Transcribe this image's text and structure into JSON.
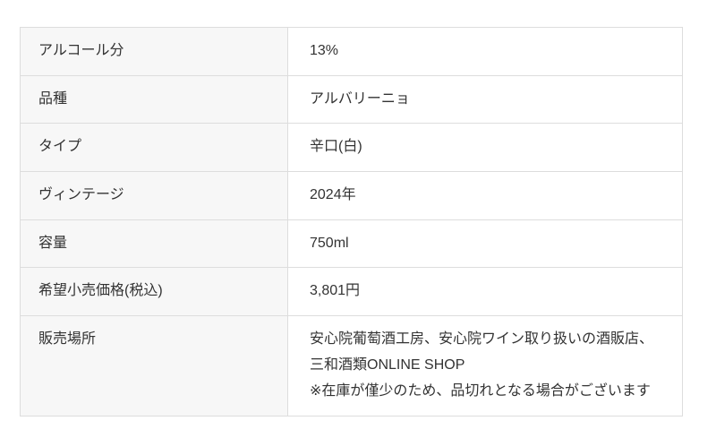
{
  "colors": {
    "label_bg": "#f7f7f7",
    "border": "#dddddd",
    "text": "#333333",
    "page_bg": "#ffffff"
  },
  "table": {
    "rows": [
      {
        "label": "アルコール分",
        "value": "13%"
      },
      {
        "label": "品種",
        "value": "アルバリーニョ"
      },
      {
        "label": "タイプ",
        "value": "辛口(白)"
      },
      {
        "label": "ヴィンテージ",
        "value": "2024年"
      },
      {
        "label": "容量",
        "value": "750ml"
      },
      {
        "label": "希望小売価格(税込)",
        "value": "3,801円"
      },
      {
        "label": "販売場所",
        "value": "安心院葡萄酒工房、安心院ワイン取り扱いの酒販店、\n三和酒類ONLINE SHOP\n※在庫が僅少のため、品切れとなる場合がございます"
      }
    ]
  }
}
